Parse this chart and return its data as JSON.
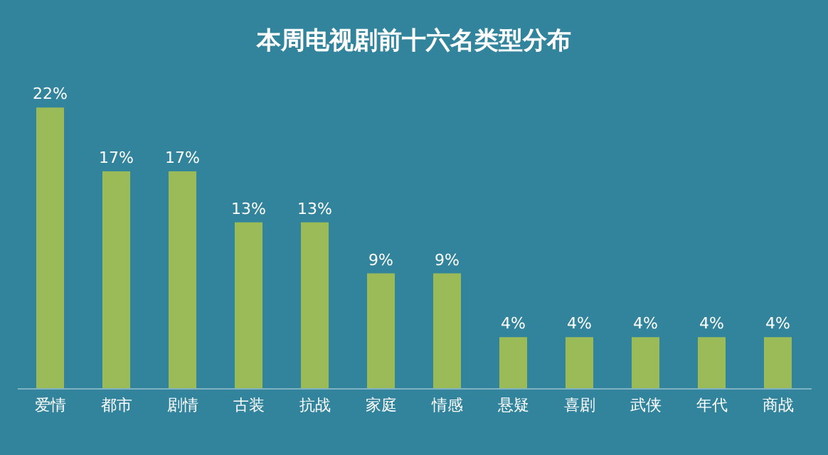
{
  "chart_data": {
    "type": "bar",
    "title": "本周电视剧前十六名类型分布",
    "categories": [
      "爱情",
      "都市",
      "剧情",
      "古装",
      "抗战",
      "家庭",
      "情感",
      "悬疑",
      "喜剧",
      "武侠",
      "年代",
      "商战"
    ],
    "values": [
      22,
      17,
      17,
      13,
      13,
      9,
      9,
      4,
      4,
      4,
      4,
      4
    ],
    "value_labels": [
      "22%",
      "17%",
      "17%",
      "13%",
      "13%",
      "9%",
      "9%",
      "4%",
      "4%",
      "4%",
      "4%",
      "4%"
    ],
    "color": "#9bbb59"
  }
}
